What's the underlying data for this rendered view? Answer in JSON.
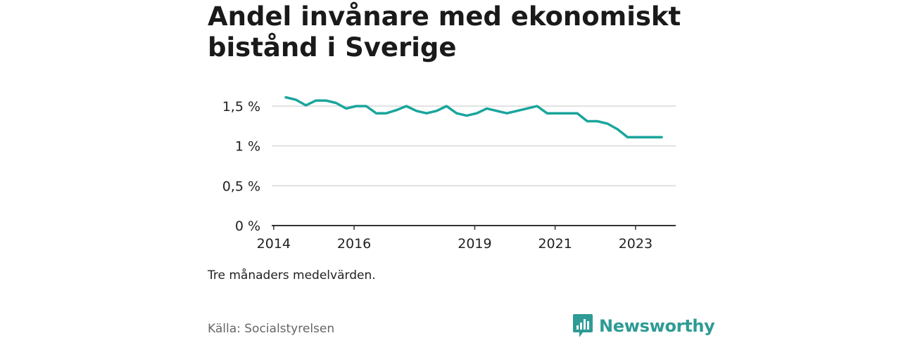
{
  "title_lines": [
    "Andel invånare med ekonomiskt",
    "bistånd i Sverige"
  ],
  "note": "Tre månaders medelvärden.",
  "source": "Källa: Socialstyrelsen",
  "brand": {
    "name": "Newsworthy",
    "color": "#2e9b95",
    "icon": "newsworthy-logo-icon"
  },
  "chart_data": {
    "type": "line",
    "title": "Andel invånare med ekonomiskt bistånd i Sverige",
    "xlabel": "",
    "ylabel": "",
    "ylim": [
      0,
      1.6
    ],
    "y_ticks": [
      0,
      0.5,
      1,
      1.5
    ],
    "y_tick_labels": [
      "0 %",
      "0,5 %",
      "1 %",
      "1,5 %"
    ],
    "x_ticks": [
      2014,
      2016,
      2019,
      2021,
      2023
    ],
    "x_tick_labels": [
      "2014",
      "2016",
      "2019",
      "2021",
      "2023"
    ],
    "grid": true,
    "series_color": "#1aa59c",
    "series": [
      {
        "x": [
          2014.3,
          2014.55,
          2014.8,
          2015.05,
          2015.3,
          2015.55,
          2015.8,
          2016.05,
          2016.3,
          2016.55,
          2016.8,
          2017.05,
          2017.3,
          2017.55,
          2017.8,
          2018.05,
          2018.3,
          2018.55,
          2018.8,
          2019.05,
          2019.3,
          2019.55,
          2019.8,
          2020.05,
          2020.3,
          2020.55,
          2020.8,
          2021.05,
          2021.3,
          2021.55,
          2021.8,
          2022.05,
          2022.3,
          2022.55,
          2022.8,
          2023.05,
          2023.3,
          2023.55,
          2023.65
        ],
        "values": [
          1.61,
          1.58,
          1.51,
          1.57,
          1.57,
          1.54,
          1.47,
          1.5,
          1.5,
          1.41,
          1.41,
          1.45,
          1.5,
          1.44,
          1.41,
          1.44,
          1.5,
          1.41,
          1.38,
          1.41,
          1.47,
          1.44,
          1.41,
          1.44,
          1.47,
          1.5,
          1.41,
          1.41,
          1.41,
          1.41,
          1.31,
          1.31,
          1.28,
          1.21,
          1.11,
          1.11,
          1.11,
          1.11,
          1.11
        ]
      }
    ]
  }
}
